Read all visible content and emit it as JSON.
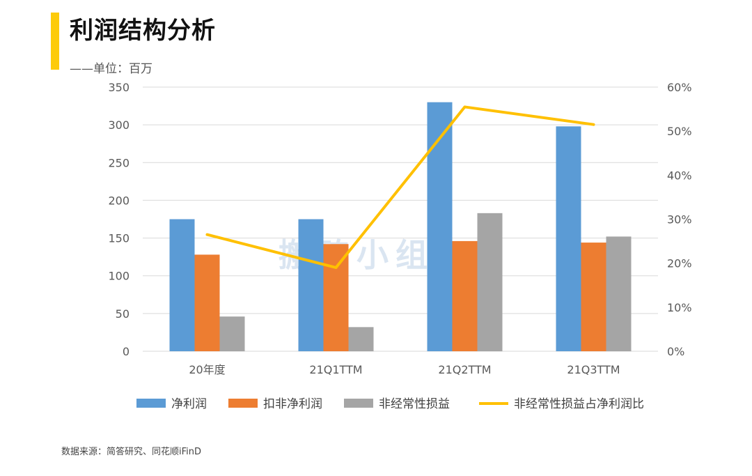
{
  "header": {
    "title": "利润结构分析",
    "unit": "——单位：百万"
  },
  "footer": {
    "source": "数据来源：简答研究、同花顺iFinD"
  },
  "watermark": "搬砖小组",
  "colors": {
    "accent": "#FDCB0A",
    "net_profit": "#5B9BD5",
    "deducted_net_profit": "#ED7D31",
    "non_recurring": "#A5A5A5",
    "ratio_line": "#FFC000"
  },
  "chart_data": {
    "type": "bar",
    "categories": [
      "20年度",
      "21Q1TTM",
      "21Q2TTM",
      "21Q3TTM"
    ],
    "series": [
      {
        "name": "净利润",
        "type": "bar",
        "axis": "left",
        "values": [
          175,
          175,
          330,
          298
        ]
      },
      {
        "name": "扣非净利润",
        "type": "bar",
        "axis": "left",
        "values": [
          128,
          142,
          146,
          144
        ]
      },
      {
        "name": "非经常性损益",
        "type": "bar",
        "axis": "left",
        "values": [
          46,
          32,
          183,
          152
        ]
      },
      {
        "name": "非经常性损益占净利润比",
        "type": "line",
        "axis": "right",
        "values": [
          26.5,
          19,
          55.5,
          51.5
        ]
      }
    ],
    "y_left": {
      "min": 0,
      "max": 350,
      "ticks": [
        "0",
        "50",
        "100",
        "150",
        "200",
        "250",
        "300",
        "350"
      ]
    },
    "y_right": {
      "min": 0,
      "max": 60,
      "ticks": [
        "0%",
        "10%",
        "20%",
        "30%",
        "40%",
        "50%",
        "60%"
      ]
    },
    "grid": true,
    "legend_position": "bottom"
  }
}
